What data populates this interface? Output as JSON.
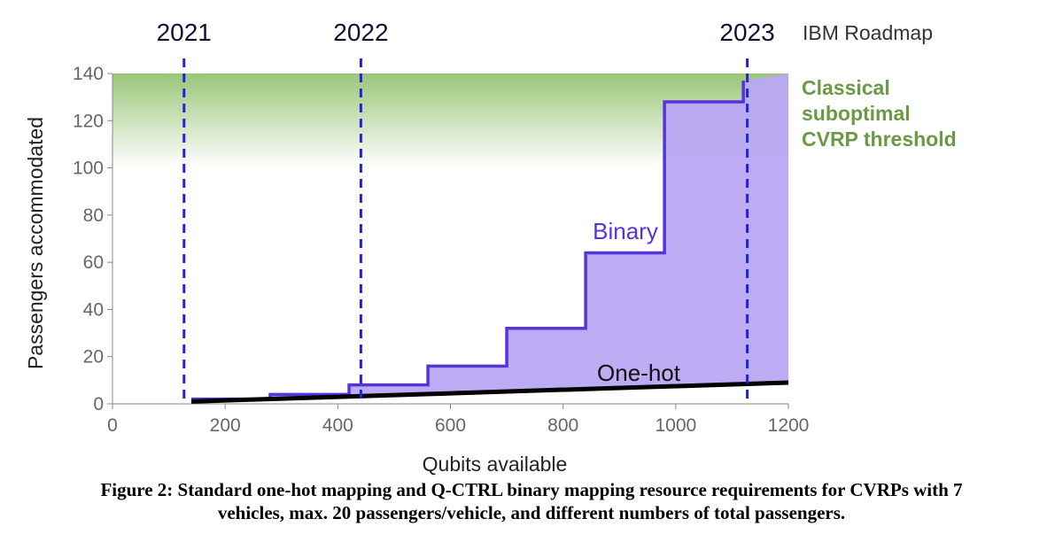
{
  "colors": {
    "binary": "#5533dd",
    "binary_fill": "#b9a6f2",
    "onehot": "#000000",
    "classical_band": "#8fbf6a",
    "classical_text": "#6a9a45",
    "roadmap_line": "#2222dd",
    "axis_text": "#666666"
  },
  "chart_data": {
    "type": "line",
    "title": "",
    "xlabel": "Qubits available",
    "ylabel": "Passengers accommodated",
    "xlim": [
      0,
      1200
    ],
    "ylim": [
      0,
      140
    ],
    "x_ticks": [
      0,
      200,
      400,
      600,
      800,
      1000,
      1200
    ],
    "y_ticks": [
      0,
      20,
      40,
      60,
      80,
      100,
      120,
      140
    ],
    "grid": false,
    "series": [
      {
        "name": "Binary",
        "style": "step",
        "x": [
          140,
          280,
          280,
          420,
          420,
          560,
          560,
          700,
          700,
          840,
          840,
          980,
          980,
          1120,
          1120
        ],
        "y": [
          2,
          2,
          4,
          4,
          8,
          8,
          16,
          16,
          32,
          32,
          64,
          64,
          128,
          128,
          137
        ]
      },
      {
        "name": "One-hot",
        "style": "line",
        "x": [
          140,
          1200
        ],
        "y": [
          1,
          9
        ]
      }
    ],
    "classical_threshold": {
      "label_lines": [
        "Classical",
        "suboptimal",
        "CVRP threshold"
      ],
      "y_from": 100,
      "y_to": 140
    },
    "roadmap": {
      "label": "IBM Roadmap",
      "markers": [
        {
          "label": "2021",
          "x": 127
        },
        {
          "label": "2022",
          "x": 441
        },
        {
          "label": "2023",
          "x": 1127
        }
      ]
    }
  },
  "caption": {
    "line1": "Figure 2: Standard one-hot mapping and Q-CTRL binary mapping resource requirements for CVRPs with 7",
    "line2": "vehicles, max. 20 passengers/vehicle, and different numbers of total passengers."
  }
}
